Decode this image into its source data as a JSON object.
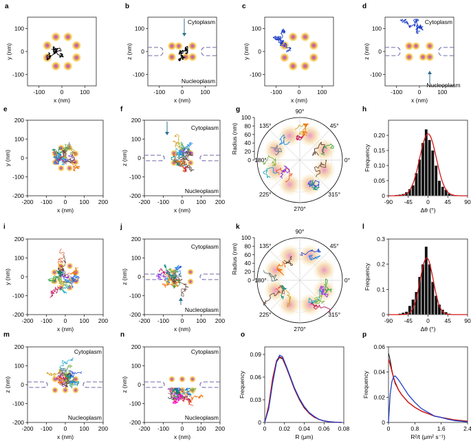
{
  "colors": {
    "dot_outer": "#f6c744",
    "dot_inner": "#a15cc0",
    "envelope": "#6f6aa6",
    "gauss_red": "#d01515",
    "blue": "#1c3dc8",
    "arrow": "#2f6f91",
    "hist": "#111111"
  },
  "chart_data": [
    {
      "type": "scatter",
      "panel": "a",
      "xlabel": "x (nm)",
      "ylabel": "y (nm)",
      "xlim": [
        -150,
        150
      ],
      "ylim": [
        -150,
        150
      ],
      "x_ticks": [
        "-100",
        "0",
        "100"
      ],
      "y_ticks": [
        "100",
        "0",
        "-100"
      ],
      "annotations": []
    },
    {
      "type": "scatter",
      "panel": "b",
      "xlabel": "x (nm)",
      "ylabel": "z (nm)",
      "xlim": [
        -150,
        150
      ],
      "ylim": [
        -150,
        150
      ],
      "x_ticks": [
        "-100",
        "0",
        "100"
      ],
      "y_ticks": [
        "100",
        "0",
        "-100"
      ],
      "annotations": [
        "Cytoplasm",
        "Nucleoplasm"
      ]
    },
    {
      "type": "scatter",
      "panel": "c",
      "xlabel": "x (nm)",
      "ylabel": "y (nm)",
      "xlim": [
        -150,
        150
      ],
      "ylim": [
        -150,
        150
      ],
      "x_ticks": [
        "-100",
        "0",
        "100"
      ],
      "y_ticks": [
        "100",
        "0",
        "-100"
      ],
      "annotations": []
    },
    {
      "type": "scatter",
      "panel": "d",
      "xlabel": "x (nm)",
      "ylabel": "z (nm)",
      "xlim": [
        -150,
        150
      ],
      "ylim": [
        -150,
        150
      ],
      "x_ticks": [
        "-100",
        "0",
        "100"
      ],
      "y_ticks": [
        "100",
        "0",
        "-100"
      ],
      "annotations": [
        "Cytoplasm",
        "Nucleoplasm"
      ]
    },
    {
      "type": "scatter",
      "panel": "e",
      "xlabel": "x (nm)",
      "ylabel": "y (nm)",
      "xlim": [
        -200,
        200
      ],
      "ylim": [
        -200,
        200
      ],
      "x_ticks": [
        "-200",
        "-100",
        "0",
        "100",
        "200"
      ],
      "y_ticks": [
        "200",
        "100",
        "0",
        "-100",
        "-200"
      ],
      "annotations": []
    },
    {
      "type": "scatter",
      "panel": "f",
      "xlabel": "x (nm)",
      "ylabel": "z (nm)",
      "xlim": [
        -200,
        200
      ],
      "ylim": [
        -200,
        200
      ],
      "x_ticks": [
        "-200",
        "-100",
        "0",
        "100",
        "200"
      ],
      "y_ticks": [
        "200",
        "100",
        "0",
        "-100",
        "-200"
      ],
      "annotations": [
        "Cytoplasm",
        "Nucleoplasm"
      ]
    },
    {
      "type": "polar",
      "panel": "g",
      "ylabel": "Radius (nm)",
      "r_ticks": [
        "100",
        "80",
        "60",
        "40",
        "20",
        "0"
      ],
      "angle_labels": [
        "90°",
        "45°",
        "0°",
        "315°",
        "270°",
        "225°",
        "180°",
        "135°"
      ]
    },
    {
      "type": "bar",
      "panel": "h",
      "xlabel": "Δθ (°)",
      "ylabel": "Frequency",
      "xlim": [
        -90,
        90
      ],
      "ylim": [
        0,
        0.25
      ],
      "x_ticks": [
        "-90",
        "-45",
        "0",
        "45",
        "90"
      ],
      "y_ticks": [
        "0.20",
        "0.15",
        "0.10",
        "0.05",
        "0"
      ],
      "bin_edges": [
        -75,
        -67.5,
        -60,
        -52.5,
        -45,
        -37.5,
        -30,
        -22.5,
        -15,
        -7.5,
        0,
        7.5,
        15,
        22.5,
        30,
        37.5,
        45,
        52.5,
        60
      ],
      "values": [
        0.003,
        0.004,
        0.006,
        0.012,
        0.022,
        0.035,
        0.075,
        0.12,
        0.175,
        0.22,
        0.185,
        0.15,
        0.1,
        0.05,
        0.03,
        0.02,
        0.008,
        0.004
      ],
      "fit": {
        "amplitude": 0.205,
        "mean": 0,
        "sigma": 19
      }
    },
    {
      "type": "scatter",
      "panel": "i",
      "xlabel": "x (nm)",
      "ylabel": "y (nm)",
      "xlim": [
        -200,
        200
      ],
      "ylim": [
        -200,
        200
      ],
      "x_ticks": [
        "-200",
        "-100",
        "0",
        "100",
        "200"
      ],
      "y_ticks": [
        "200",
        "100",
        "0",
        "-100",
        "-200"
      ],
      "annotations": []
    },
    {
      "type": "scatter",
      "panel": "j",
      "xlabel": "x (nm)",
      "ylabel": "z (nm)",
      "xlim": [
        -200,
        200
      ],
      "ylim": [
        -200,
        200
      ],
      "x_ticks": [
        "-200",
        "-100",
        "0",
        "100",
        "200"
      ],
      "y_ticks": [
        "200",
        "100",
        "0",
        "-100",
        "-200"
      ],
      "annotations": [
        "Cytoplasm",
        "Nucleoplasm"
      ]
    },
    {
      "type": "polar",
      "panel": "k",
      "ylabel": "Radius (nm)",
      "r_ticks": [
        "100",
        "80",
        "60",
        "40",
        "20",
        "0"
      ],
      "angle_labels": [
        "90°",
        "45°",
        "0°",
        "315°",
        "270°",
        "225°",
        "180°",
        "135°"
      ]
    },
    {
      "type": "bar",
      "panel": "l",
      "xlabel": "Δθ (°)",
      "ylabel": "Frequency",
      "xlim": [
        -90,
        90
      ],
      "ylim": [
        0,
        0.3
      ],
      "x_ticks": [
        "-90",
        "-45",
        "0",
        "45",
        "90"
      ],
      "y_ticks": [
        "0.3",
        "0.2",
        "0.1",
        "0"
      ],
      "bin_edges": [
        -67.5,
        -60,
        -52.5,
        -45,
        -37.5,
        -30,
        -22.5,
        -15,
        -7.5,
        0,
        7.5,
        15,
        22.5,
        30,
        37.5,
        45,
        52.5
      ],
      "values": [
        0.004,
        0.008,
        0.012,
        0.035,
        0.06,
        0.09,
        0.15,
        0.2,
        0.27,
        0.2,
        0.13,
        0.075,
        0.04,
        0.02,
        0.01,
        0.004
      ],
      "fit": {
        "amplitude": 0.225,
        "mean": -3,
        "sigma": 15
      }
    },
    {
      "type": "scatter",
      "panel": "m",
      "xlabel": "x (nm)",
      "ylabel": "z (nm)",
      "xlim": [
        -200,
        200
      ],
      "ylim": [
        -200,
        200
      ],
      "x_ticks": [
        "-200",
        "-100",
        "0",
        "100",
        "200"
      ],
      "y_ticks": [
        "200",
        "100",
        "0",
        "-100",
        "-200"
      ],
      "annotations": [
        "Cytoplasm",
        "Nucleoplasm"
      ]
    },
    {
      "type": "scatter",
      "panel": "n",
      "xlabel": "x (nm)",
      "ylabel": "z (nm)",
      "xlim": [
        -200,
        200
      ],
      "ylim": [
        -200,
        200
      ],
      "x_ticks": [
        "-200",
        "-100",
        "0",
        "100",
        "200"
      ],
      "y_ticks": [
        "200",
        "100",
        "0",
        "-100",
        "-200"
      ],
      "annotations": [
        "Cytoplasm",
        "Nucleoplasm"
      ]
    },
    {
      "type": "line",
      "panel": "o",
      "xlabel": "R (μm)",
      "ylabel": "Frequency",
      "xlim": [
        0,
        0.08
      ],
      "ylim": [
        0,
        0.1
      ],
      "x_ticks": [
        "0",
        "0.02",
        "0.04",
        "0.06",
        "0.08"
      ],
      "y_ticks": [
        "0.09",
        "0.06",
        "0.03",
        "0"
      ],
      "series": [
        {
          "name": "data",
          "x": [
            0,
            0.004,
            0.008,
            0.012,
            0.015,
            0.018,
            0.022,
            0.026,
            0.03,
            0.035,
            0.04,
            0.045,
            0.05,
            0.055,
            0.06,
            0.065,
            0.07,
            0.078
          ],
          "y": [
            0,
            0.02,
            0.055,
            0.08,
            0.086,
            0.084,
            0.072,
            0.058,
            0.044,
            0.03,
            0.019,
            0.012,
            0.007,
            0.004,
            0.002,
            0.001,
            0.0005,
            0
          ]
        },
        {
          "name": "fit-red",
          "x": [
            0,
            0.004,
            0.008,
            0.012,
            0.015,
            0.018,
            0.022,
            0.026,
            0.03,
            0.035,
            0.04,
            0.045,
            0.05,
            0.055,
            0.06,
            0.065,
            0.07,
            0.078
          ],
          "y": [
            0,
            0.022,
            0.058,
            0.082,
            0.087,
            0.085,
            0.073,
            0.059,
            0.045,
            0.031,
            0.02,
            0.012,
            0.007,
            0.004,
            0.002,
            0.001,
            0.0005,
            0
          ]
        },
        {
          "name": "fit-blue",
          "x": [
            0,
            0.004,
            0.008,
            0.012,
            0.015,
            0.018,
            0.022,
            0.026,
            0.03,
            0.035,
            0.04,
            0.045,
            0.05,
            0.055,
            0.06,
            0.065,
            0.07,
            0.078
          ],
          "y": [
            0,
            0.018,
            0.052,
            0.08,
            0.089,
            0.087,
            0.074,
            0.06,
            0.046,
            0.032,
            0.021,
            0.013,
            0.008,
            0.004,
            0.002,
            0.001,
            0.0005,
            0
          ]
        }
      ]
    },
    {
      "type": "line",
      "panel": "p",
      "xlabel": "R²/t (μm² s⁻¹)",
      "ylabel": "Frequency",
      "xlim": [
        0,
        2.4
      ],
      "ylim": [
        0,
        0.06
      ],
      "x_ticks": [
        "0",
        "0.8",
        "1.6",
        "2.4"
      ],
      "y_ticks": [
        "0.06",
        "0.04",
        "0.02",
        "0"
      ],
      "series": [
        {
          "name": "data",
          "x": [
            0,
            0.03,
            0.06,
            0.1,
            0.15,
            0.2,
            0.3,
            0.4,
            0.5,
            0.6,
            0.8,
            1.0,
            1.2,
            1.4,
            1.6,
            1.8,
            2.0,
            2.2,
            2.4
          ],
          "y": [
            0.055,
            0.052,
            0.048,
            0.042,
            0.036,
            0.031,
            0.026,
            0.022,
            0.019,
            0.016,
            0.012,
            0.009,
            0.007,
            0.005,
            0.004,
            0.003,
            0.002,
            0.0015,
            0.001
          ]
        },
        {
          "name": "fit-red",
          "x": [
            0,
            0.03,
            0.06,
            0.1,
            0.15,
            0.2,
            0.3,
            0.4,
            0.5,
            0.6,
            0.8,
            1.0,
            1.2,
            1.4,
            1.6,
            1.8,
            2.0,
            2.2,
            2.4
          ],
          "y": [
            0.05,
            0.048,
            0.045,
            0.041,
            0.036,
            0.032,
            0.026,
            0.022,
            0.019,
            0.016,
            0.012,
            0.009,
            0.007,
            0.005,
            0.004,
            0.003,
            0.002,
            0.0015,
            0.001
          ]
        },
        {
          "name": "fit-blue",
          "x": [
            0,
            0.05,
            0.1,
            0.15,
            0.2,
            0.3,
            0.4,
            0.5,
            0.6,
            0.8,
            1.0,
            1.2,
            1.4,
            1.6,
            1.8,
            2.0,
            2.2,
            2.4
          ],
          "y": [
            0.0,
            0.022,
            0.032,
            0.036,
            0.037,
            0.034,
            0.03,
            0.026,
            0.022,
            0.016,
            0.011,
            0.008,
            0.005,
            0.004,
            0.0025,
            0.0015,
            0.001,
            0.0005
          ]
        }
      ]
    }
  ]
}
